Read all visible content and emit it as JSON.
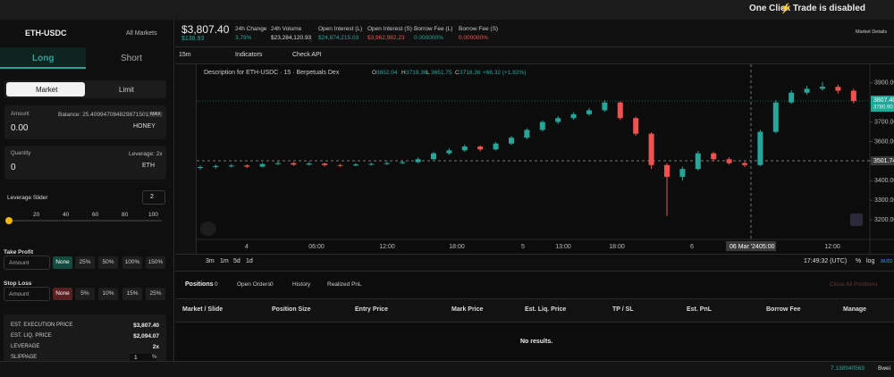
{
  "banner": {
    "text": "One Click Trade is disabled"
  },
  "sidebar": {
    "market": "ETH-USDC",
    "all_markets": "All Markets",
    "tabs": [
      "Long",
      "Short"
    ],
    "order_types": [
      "Market",
      "Limit"
    ],
    "amount": {
      "label": "Amount",
      "balance": "Balance: 25.409947084829871501",
      "max": "MAX",
      "value": "0.00",
      "token": "HONEY"
    },
    "quantity": {
      "label": "Quantity",
      "leverage": "Leverage: 2x",
      "value": "0",
      "token": "ETH"
    },
    "leverage_slider": {
      "label": "Leverage Slider",
      "value": "2",
      "ticks": [
        "20",
        "40",
        "60",
        "80",
        "100"
      ]
    },
    "take_profit": {
      "label": "Take Profit",
      "placeholder": "Amount",
      "options": [
        "None",
        "25%",
        "50%",
        "100%",
        "150%"
      ]
    },
    "stop_loss": {
      "label": "Stop Loss",
      "placeholder": "Amount",
      "options": [
        "None",
        "5%",
        "10%",
        "15%",
        "25%"
      ]
    },
    "summary": [
      {
        "label": "EST. EXECUTION PRICE",
        "value": "$3,807.40"
      },
      {
        "label": "EST. LIQ. PRICE",
        "value": "$2,094.07"
      },
      {
        "label": "LEVERAGE",
        "value": "2x"
      },
      {
        "label": "SLIPPAGE",
        "value": "1",
        "unit": "%"
      }
    ]
  },
  "header": {
    "price": "$3,807.40",
    "change": "$138.93",
    "stats": [
      {
        "label": "24h Change",
        "value": "3.79%"
      },
      {
        "label": "24h Volume",
        "value": "$23,284,120.93"
      },
      {
        "label": "Open Interest (L)",
        "value": "$24,874,215.03"
      },
      {
        "label": "Open Interest (S)",
        "value": "$3,962,982.23"
      },
      {
        "label": "Borrow Fee (L)",
        "value": "0.000000%"
      },
      {
        "label": "Borrow Fee (S)",
        "value": "0.000000%"
      }
    ],
    "details": "Market Details"
  },
  "toolbar": {
    "interval": "15m",
    "indicators": "Indicators",
    "check_api": "Check API"
  },
  "chart": {
    "type": "candlestick",
    "description": "Description for ETH-USDC · 15 · Berpetuals Dex",
    "legend": [
      {
        "key": "O",
        "value": "3652.04"
      },
      {
        "key": "H",
        "value": "3718.36"
      },
      {
        "key": "L",
        "value": "3651.75"
      },
      {
        "key": "C",
        "value": "3718.36"
      }
    ],
    "legend_change": "+66.32 (+1.82%)",
    "ylim": [
      3100,
      3995
    ],
    "yticks": [
      {
        "value": 3200,
        "label": "3200.00"
      },
      {
        "value": 3300,
        "label": "3300.00"
      },
      {
        "value": 3400,
        "label": "3400.00"
      },
      {
        "value": 3500,
        "label": "3500.00"
      },
      {
        "value": 3600,
        "label": "3600.00"
      },
      {
        "value": 3700,
        "label": "3700.00"
      },
      {
        "value": 3800,
        "label": "3800.00"
      },
      {
        "value": 3900,
        "label": "3900.00"
      }
    ],
    "last_price": {
      "value": 3807.4,
      "label": "3807.40"
    },
    "last_price_sub": "3780.90",
    "crosshair_price": {
      "value": 3501.74,
      "label": "3501.74"
    },
    "crosshair_time": [
      "06 Mar '24",
      "05:00"
    ],
    "x_labels": [
      "4",
      "06:00",
      "12:00",
      "18:00",
      "5",
      "13:00",
      "18:00",
      "6",
      "12:00"
    ],
    "up_color": "#26a69a",
    "down_color": "#ef5350",
    "candles": [
      [
        3465,
        3478,
        3458,
        3470
      ],
      [
        3470,
        3482,
        3462,
        3475
      ],
      [
        3475,
        3486,
        3468,
        3478
      ],
      [
        3478,
        3484,
        3465,
        3472
      ],
      [
        3472,
        3492,
        3468,
        3485
      ],
      [
        3485,
        3498,
        3480,
        3490
      ],
      [
        3490,
        3495,
        3476,
        3482
      ],
      [
        3482,
        3495,
        3478,
        3488
      ],
      [
        3488,
        3492,
        3473,
        3480
      ],
      [
        3480,
        3486,
        3470,
        3478
      ],
      [
        3478,
        3490,
        3474,
        3483
      ],
      [
        3483,
        3492,
        3478,
        3486
      ],
      [
        3486,
        3496,
        3481,
        3490
      ],
      [
        3490,
        3502,
        3485,
        3495
      ],
      [
        3495,
        3518,
        3490,
        3510
      ],
      [
        3510,
        3548,
        3505,
        3540
      ],
      [
        3540,
        3565,
        3532,
        3555
      ],
      [
        3555,
        3585,
        3548,
        3575
      ],
      [
        3575,
        3580,
        3550,
        3560
      ],
      [
        3560,
        3598,
        3555,
        3590
      ],
      [
        3590,
        3628,
        3584,
        3620
      ],
      [
        3620,
        3668,
        3612,
        3660
      ],
      [
        3660,
        3708,
        3652,
        3700
      ],
      [
        3700,
        3730,
        3690,
        3720
      ],
      [
        3720,
        3750,
        3712,
        3740
      ],
      [
        3740,
        3772,
        3732,
        3760
      ],
      [
        3760,
        3812,
        3752,
        3800
      ],
      [
        3800,
        3806,
        3710,
        3720
      ],
      [
        3720,
        3728,
        3630,
        3640
      ],
      [
        3640,
        3648,
        3460,
        3480
      ],
      [
        3480,
        3490,
        3220,
        3420
      ],
      [
        3420,
        3472,
        3400,
        3460
      ],
      [
        3460,
        3552,
        3452,
        3540
      ],
      [
        3540,
        3548,
        3500,
        3510
      ],
      [
        3510,
        3520,
        3482,
        3490
      ],
      [
        3490,
        3498,
        3470,
        3480
      ],
      [
        3480,
        3660,
        3475,
        3650
      ],
      [
        3650,
        3812,
        3642,
        3800
      ],
      [
        3800,
        3862,
        3792,
        3850
      ],
      [
        3850,
        3885,
        3840,
        3870
      ],
      [
        3870,
        3905,
        3860,
        3880
      ],
      [
        3880,
        3892,
        3845,
        3860
      ],
      [
        3860,
        3870,
        3795,
        3807.4
      ]
    ]
  },
  "chart_footer": {
    "ranges": [
      "3m",
      "1m",
      "5d",
      "1d"
    ],
    "clock": "17:49:32 (UTC)",
    "percent": "%",
    "log": "log",
    "auto": "auto"
  },
  "positions": {
    "tabs": [
      {
        "label": "Positions",
        "count": "0"
      },
      {
        "label": "Open Orders",
        "count": "0"
      },
      {
        "label": "History"
      },
      {
        "label": "Realized PnL"
      }
    ],
    "close_all": "Close All Positions",
    "columns": [
      "Market / Slide",
      "Position Size",
      "Entry Price",
      "Mark Price",
      "Est. Liq. Price",
      "TP / SL",
      "Est. PnL",
      "Borrow Fee",
      "Manage"
    ],
    "empty": "No results."
  },
  "footer": {
    "balance": "7.138940569",
    "unit": "Bwei"
  }
}
